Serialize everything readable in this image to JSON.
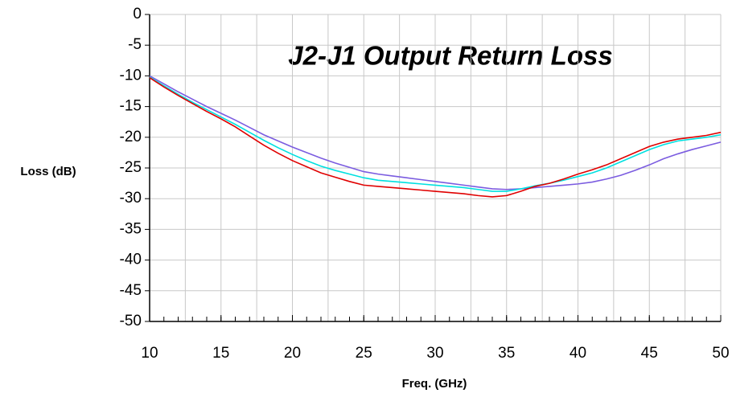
{
  "chart_data": {
    "type": "line",
    "title": "J2-J1 Output Return Loss",
    "xlabel": "Freq. (GHz)",
    "ylabel": "Loss (dB)",
    "x": [
      10,
      11,
      12,
      13,
      14,
      15,
      16,
      17,
      18,
      19,
      20,
      21,
      22,
      23,
      24,
      25,
      26,
      27,
      28,
      29,
      30,
      31,
      32,
      33,
      34,
      35,
      36,
      37,
      38,
      39,
      40,
      41,
      42,
      43,
      44,
      45,
      46,
      47,
      48,
      49,
      50
    ],
    "series": [
      {
        "color": "#e00000",
        "values": [
          -10.3,
          -11.8,
          -13.2,
          -14.5,
          -15.8,
          -17,
          -18.3,
          -19.8,
          -21.3,
          -22.6,
          -23.8,
          -24.8,
          -25.8,
          -26.5,
          -27.2,
          -27.8,
          -28,
          -28.2,
          -28.4,
          -28.6,
          -28.8,
          -29,
          -29.2,
          -29.5,
          -29.7,
          -29.5,
          -28.8,
          -28,
          -27.5,
          -26.8,
          -26,
          -25.3,
          -24.5,
          -23.5,
          -22.5,
          -21.5,
          -20.8,
          -20.3,
          -20,
          -19.7,
          -19.2
        ]
      },
      {
        "color": "#00e0e0",
        "values": [
          -10.2,
          -11.6,
          -13,
          -14.3,
          -15.5,
          -16.7,
          -17.9,
          -19.2,
          -20.5,
          -21.7,
          -22.8,
          -23.8,
          -24.7,
          -25.4,
          -26,
          -26.6,
          -27,
          -27.2,
          -27.4,
          -27.6,
          -27.8,
          -28,
          -28.2,
          -28.5,
          -28.8,
          -28.8,
          -28.4,
          -27.9,
          -27.5,
          -27,
          -26.4,
          -25.8,
          -25,
          -24,
          -23,
          -22,
          -21.2,
          -20.6,
          -20.3,
          -20,
          -19.6
        ]
      },
      {
        "color": "#7b5ce0",
        "values": [
          -10,
          -11.3,
          -12.6,
          -13.8,
          -15,
          -16.1,
          -17.2,
          -18.4,
          -19.6,
          -20.6,
          -21.6,
          -22.5,
          -23.4,
          -24.2,
          -24.9,
          -25.6,
          -26,
          -26.3,
          -26.6,
          -26.9,
          -27.2,
          -27.5,
          -27.8,
          -28.1,
          -28.4,
          -28.5,
          -28.4,
          -28.2,
          -28,
          -27.8,
          -27.6,
          -27.3,
          -26.8,
          -26.2,
          -25.4,
          -24.5,
          -23.5,
          -22.7,
          -22,
          -21.4,
          -20.8
        ]
      }
    ],
    "xlim": [
      10,
      50
    ],
    "ylim": [
      -50,
      0
    ],
    "xticks": [
      10,
      15,
      20,
      25,
      30,
      35,
      40,
      45,
      50
    ],
    "yticks": [
      0,
      -5,
      -10,
      -15,
      -20,
      -25,
      -30,
      -35,
      -40,
      -45,
      -50
    ],
    "xgrid": [
      12.5,
      15,
      17.5,
      20,
      22.5,
      25,
      27.5,
      30,
      32.5,
      35,
      37.5,
      40,
      42.5,
      45,
      47.5,
      50
    ],
    "xminorticks": [
      11,
      12,
      13,
      14,
      15,
      16,
      17,
      18,
      19,
      20,
      21,
      22,
      23,
      24,
      25,
      26,
      27,
      28,
      29,
      30,
      31,
      32,
      33,
      34,
      35,
      36,
      37,
      38,
      39,
      40,
      41,
      42,
      43,
      44,
      45,
      46,
      47,
      48,
      49
    ],
    "grid": true
  }
}
